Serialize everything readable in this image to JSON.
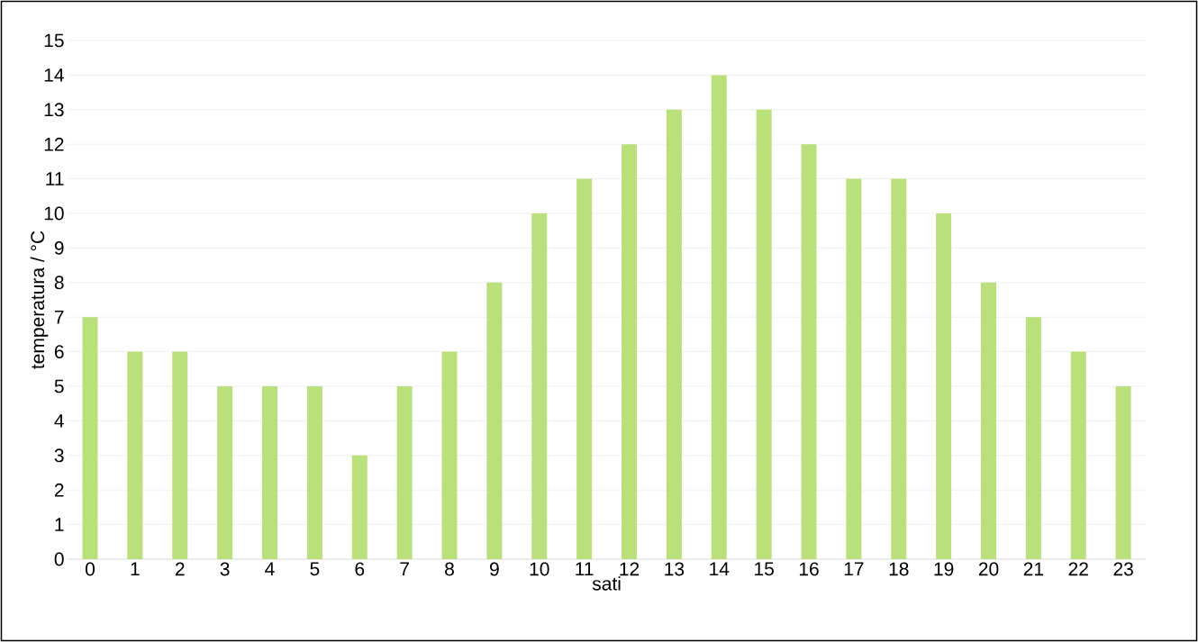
{
  "chart_data": {
    "type": "bar",
    "xlabel": "sati",
    "ylabel": "temperatura / °C",
    "categories": [
      "0",
      "1",
      "2",
      "3",
      "4",
      "5",
      "6",
      "7",
      "8",
      "9",
      "10",
      "11",
      "12",
      "13",
      "14",
      "15",
      "16",
      "17",
      "18",
      "19",
      "20",
      "21",
      "22",
      "23"
    ],
    "values": [
      7,
      6,
      6,
      5,
      5,
      5,
      3,
      5,
      6,
      8,
      10,
      11,
      12,
      13,
      14,
      13,
      12,
      11,
      11,
      10,
      8,
      7,
      6,
      5
    ],
    "color": "#b9e07a",
    "ylim": [
      0,
      15
    ],
    "yticks": [
      0,
      1,
      2,
      3,
      4,
      5,
      6,
      7,
      8,
      9,
      10,
      11,
      12,
      13,
      14,
      15
    ],
    "grid": "y"
  }
}
